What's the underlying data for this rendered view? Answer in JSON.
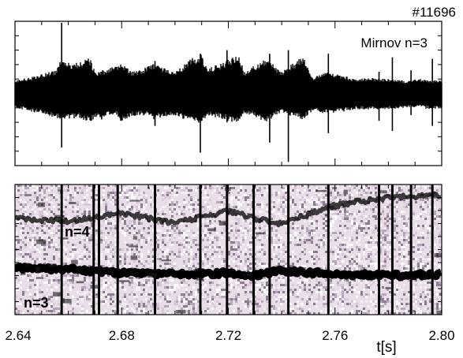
{
  "figure": {
    "shot_label": "#11696",
    "colors": {
      "signal": "#000000",
      "background": "#ffffff",
      "spectrogram_noise": "#e9dde8"
    }
  },
  "chart_data": [
    {
      "type": "line",
      "panel": "top",
      "annotation": "Mirnov n=3",
      "xlim": [
        2.64,
        2.8
      ],
      "ylim": [
        -1,
        1
      ],
      "x_ticks": [
        2.64,
        2.68,
        2.72,
        2.76,
        2.8
      ],
      "xlabel": "",
      "ylabel": "",
      "envelope": {
        "x": [
          2.64,
          2.645,
          2.655,
          2.657,
          2.664,
          2.668,
          2.67,
          2.678,
          2.68,
          2.684,
          2.69,
          2.692,
          2.7,
          2.702,
          2.706,
          2.71,
          2.712,
          2.718,
          2.724,
          2.726,
          2.73,
          2.734,
          2.74,
          2.742,
          2.748,
          2.752,
          2.756,
          2.762,
          2.768,
          2.774,
          2.78,
          2.786,
          2.792,
          2.796,
          2.8
        ],
        "upper": [
          0.18,
          0.22,
          0.32,
          0.45,
          0.42,
          0.5,
          0.3,
          0.38,
          0.42,
          0.3,
          0.38,
          0.42,
          0.3,
          0.36,
          0.48,
          0.56,
          0.34,
          0.44,
          0.54,
          0.3,
          0.4,
          0.5,
          0.3,
          0.36,
          0.52,
          0.22,
          0.3,
          0.26,
          0.2,
          0.22,
          0.2,
          0.18,
          0.2,
          0.18,
          0.18
        ],
        "lower": [
          -0.2,
          -0.24,
          -0.34,
          -0.36,
          -0.34,
          -0.4,
          -0.34,
          -0.3,
          -0.4,
          -0.32,
          -0.3,
          -0.36,
          -0.3,
          -0.34,
          -0.4,
          -0.42,
          -0.3,
          -0.36,
          -0.42,
          -0.28,
          -0.32,
          -0.4,
          -0.26,
          -0.3,
          -0.36,
          -0.24,
          -0.28,
          -0.26,
          -0.22,
          -0.22,
          -0.22,
          -0.2,
          -0.2,
          -0.22,
          -0.2
        ]
      },
      "spikes": [
        {
          "x": 2.6575,
          "top": 0.98,
          "bottom": -0.75
        },
        {
          "x": 2.6725,
          "top": 0.3,
          "bottom": -0.36
        },
        {
          "x": 2.6925,
          "top": 0.45,
          "bottom": -0.45
        },
        {
          "x": 2.7095,
          "top": 0.55,
          "bottom": -0.82
        },
        {
          "x": 2.7195,
          "top": 0.6,
          "bottom": -0.4
        },
        {
          "x": 2.7355,
          "top": 0.55,
          "bottom": -0.68
        },
        {
          "x": 2.7425,
          "top": 0.6,
          "bottom": -0.95
        },
        {
          "x": 2.7575,
          "top": 0.55,
          "bottom": -0.55
        },
        {
          "x": 2.7765,
          "top": 0.3,
          "bottom": -0.38
        },
        {
          "x": 2.7815,
          "top": 0.5,
          "bottom": -0.52
        },
        {
          "x": 2.7885,
          "top": 0.32,
          "bottom": -0.3
        },
        {
          "x": 2.7965,
          "top": 0.48,
          "bottom": -0.45
        }
      ]
    },
    {
      "type": "heatmap",
      "panel": "bottom",
      "annotations": [
        "n=4",
        "n=3"
      ],
      "xlim": [
        2.64,
        2.8
      ],
      "ylim": [
        0,
        1
      ],
      "x_ticks": [
        2.64,
        2.68,
        2.72,
        2.76,
        2.8
      ],
      "x_tick_labels": [
        "2.64",
        "2.68",
        "2.72",
        "2.76",
        "2.80"
      ],
      "xlabel": "t[s]",
      "ylabel": "",
      "mode_bands": [
        {
          "name": "n=3",
          "x": [
            2.64,
            2.66,
            2.68,
            2.7,
            2.72,
            2.73,
            2.74,
            2.76,
            2.78,
            2.8
          ],
          "y": [
            0.36,
            0.35,
            0.32,
            0.31,
            0.32,
            0.3,
            0.34,
            0.31,
            0.3,
            0.31
          ]
        },
        {
          "name": "n=4",
          "x": [
            2.64,
            2.66,
            2.68,
            2.7,
            2.72,
            2.73,
            2.74,
            2.76,
            2.78,
            2.8
          ],
          "y": [
            0.74,
            0.72,
            0.78,
            0.7,
            0.8,
            0.74,
            0.7,
            0.84,
            0.9,
            0.92
          ]
        }
      ],
      "vertical_streaks": [
        2.6575,
        2.6695,
        2.6715,
        2.6785,
        2.6925,
        2.7095,
        2.7195,
        2.7295,
        2.7355,
        2.7425,
        2.7575,
        2.7765,
        2.7815,
        2.7885,
        2.7965
      ]
    }
  ]
}
